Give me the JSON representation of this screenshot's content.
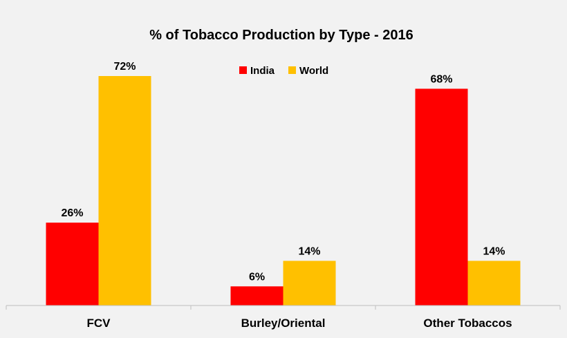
{
  "chart_data": {
    "type": "bar",
    "title": "% of Tobacco Production by Type - 2016",
    "categories": [
      "FCV",
      "Burley/Oriental",
      "Other Tobaccos"
    ],
    "series": [
      {
        "name": "India",
        "color": "#ff0000",
        "values": [
          26,
          6,
          68
        ],
        "labels": [
          "26%",
          "6%",
          "68%"
        ]
      },
      {
        "name": "World",
        "color": "#ffc000",
        "values": [
          72,
          14,
          14
        ],
        "labels": [
          "72%",
          "14%",
          "14%"
        ]
      }
    ],
    "ylim": [
      0,
      72
    ],
    "grid": false,
    "legend_position": "top-center"
  }
}
